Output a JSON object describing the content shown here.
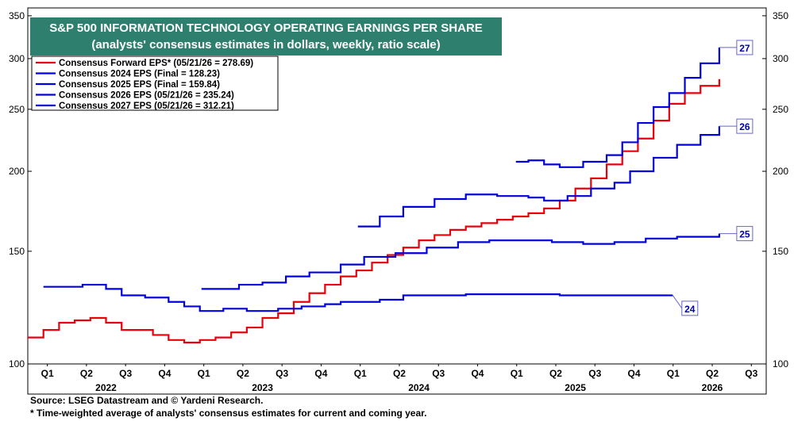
{
  "chart_data": {
    "type": "line",
    "title": "S&P 500 INFORMATION TECHNOLOGY OPERATING EARNINGS PER SHARE",
    "subtitle": "(analysts' consensus estimates in dollars, weekly, ratio scale)",
    "log_scale": true,
    "xlim": [
      2022,
      2026.72
    ],
    "ylim": [
      100,
      360
    ],
    "y2lim": [
      100,
      360
    ],
    "yticks": [
      100,
      150,
      200,
      250,
      300,
      350
    ],
    "y2ticks": [
      100,
      150,
      200,
      250,
      300,
      350
    ],
    "xticks": [
      {
        "value": 2022.125,
        "label": "Q1"
      },
      {
        "value": 2022.375,
        "label": "Q2"
      },
      {
        "value": 2022.625,
        "label": "Q3"
      },
      {
        "value": 2022.875,
        "label": "Q4"
      },
      {
        "value": 2023.125,
        "label": "Q1"
      },
      {
        "value": 2023.375,
        "label": "Q2"
      },
      {
        "value": 2023.625,
        "label": "Q3"
      },
      {
        "value": 2023.875,
        "label": "Q4"
      },
      {
        "value": 2024.125,
        "label": "Q1"
      },
      {
        "value": 2024.375,
        "label": "Q2"
      },
      {
        "value": 2024.625,
        "label": "Q3"
      },
      {
        "value": 2024.875,
        "label": "Q4"
      },
      {
        "value": 2025.125,
        "label": "Q1"
      },
      {
        "value": 2025.375,
        "label": "Q2"
      },
      {
        "value": 2025.625,
        "label": "Q3"
      },
      {
        "value": 2025.875,
        "label": "Q4"
      },
      {
        "value": 2026.125,
        "label": "Q1"
      },
      {
        "value": 2026.375,
        "label": "Q2"
      },
      {
        "value": 2026.625,
        "label": "Q3"
      }
    ],
    "year_labels": [
      {
        "value": 2022.5,
        "label": "2022"
      },
      {
        "value": 2023.5,
        "label": "2023"
      },
      {
        "value": 2024.5,
        "label": "2024"
      },
      {
        "value": 2025.5,
        "label": "2025"
      },
      {
        "value": 2026.375,
        "label": "2026"
      }
    ],
    "series": [
      {
        "name": "Consensus Forward EPS* (05/21/26 = 278.69)",
        "color": "#e8000b",
        "x": [
          2022.0,
          2022.1,
          2022.2,
          2022.3,
          2022.4,
          2022.5,
          2022.6,
          2022.7,
          2022.8,
          2022.9,
          2023.0,
          2023.1,
          2023.2,
          2023.3,
          2023.4,
          2023.5,
          2023.6,
          2023.7,
          2023.8,
          2023.9,
          2024.0,
          2024.1,
          2024.2,
          2024.3,
          2024.4,
          2024.5,
          2024.6,
          2024.7,
          2024.8,
          2024.9,
          2025.0,
          2025.1,
          2025.2,
          2025.3,
          2025.4,
          2025.5,
          2025.6,
          2025.7,
          2025.8,
          2025.9,
          2026.0,
          2026.1,
          2026.2,
          2026.3,
          2026.42
        ],
        "values": [
          110,
          113,
          116,
          117,
          118,
          116,
          113,
          113,
          111,
          109,
          108,
          109,
          110,
          112,
          114,
          118,
          120,
          125,
          129,
          133,
          137,
          140,
          144,
          148,
          152,
          156,
          159,
          162,
          164,
          166,
          168,
          170,
          172,
          175,
          180,
          188,
          195,
          205,
          215,
          225,
          240,
          255,
          265,
          272,
          278.69
        ]
      },
      {
        "name": "Consensus 2024 EPS (Final = 128.23)",
        "color": "#0000dd",
        "end_label": "24",
        "x": [
          2022.1,
          2022.2,
          2022.35,
          2022.5,
          2022.6,
          2022.75,
          2022.9,
          2023.0,
          2023.1,
          2023.25,
          2023.4,
          2023.5,
          2023.6,
          2023.75,
          2023.9,
          2024.0,
          2024.25,
          2024.4,
          2024.6,
          2024.8,
          2025.0,
          2025.25,
          2025.4,
          2025.6,
          2026.12
        ],
        "values": [
          132,
          132,
          133,
          131,
          128,
          127,
          125,
          123,
          121,
          122,
          121,
          121,
          122,
          123,
          124,
          125,
          126,
          128,
          128,
          128.5,
          128.5,
          128.5,
          128,
          128,
          128.23
        ]
      },
      {
        "name": "Consensus 2025 EPS  (Final = 159.84)",
        "color": "#0000dd",
        "end_label": "25",
        "x": [
          2023.11,
          2023.25,
          2023.35,
          2023.5,
          2023.65,
          2023.8,
          2024.0,
          2024.15,
          2024.35,
          2024.55,
          2024.75,
          2024.95,
          2025.15,
          2025.35,
          2025.55,
          2025.75,
          2025.95,
          2026.15,
          2026.42
        ],
        "values": [
          131,
          131,
          133,
          134,
          137,
          139,
          143,
          147,
          149,
          152,
          155,
          156,
          156,
          155,
          154,
          155,
          157,
          158,
          159.84
        ]
      },
      {
        "name": "Consensus 2026 EPS (05/21/26 = 235.24)",
        "color": "#0000dd",
        "end_label": "26",
        "x": [
          2024.11,
          2024.25,
          2024.4,
          2024.6,
          2024.8,
          2025.0,
          2025.2,
          2025.3,
          2025.45,
          2025.6,
          2025.75,
          2025.85,
          2026.0,
          2026.15,
          2026.3,
          2026.42
        ],
        "values": [
          164,
          170,
          176,
          181,
          184,
          183,
          182,
          180,
          183,
          188,
          192,
          200,
          210,
          220,
          228,
          235.24
        ]
      },
      {
        "name": "Consensus 2027 EPS (05/21/26 = 312.21)",
        "color": "#0000dd",
        "end_label": "27",
        "x": [
          2025.12,
          2025.2,
          2025.3,
          2025.4,
          2025.55,
          2025.7,
          2025.8,
          2025.9,
          2026.0,
          2026.1,
          2026.2,
          2026.3,
          2026.42
        ],
        "values": [
          207,
          208,
          205,
          203,
          207,
          212,
          222,
          238,
          252,
          265,
          280,
          295,
          312.21
        ]
      }
    ],
    "source": "Source: LSEG Datastream and © Yardeni Research.",
    "footnote": "* Time-weighted average of analysts' consensus estimates for current and coming year."
  }
}
